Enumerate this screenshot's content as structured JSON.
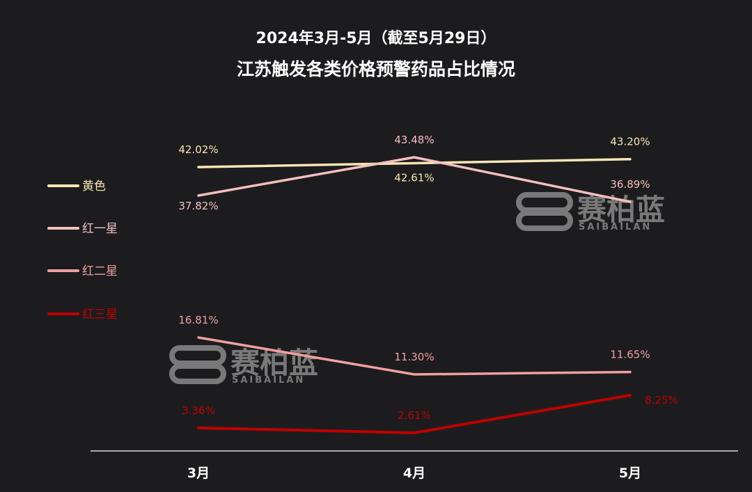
{
  "chart_data": {
    "type": "line",
    "title": "2024年3月-5月（截至5月29日）",
    "subtitle": "江苏触发各类价格预警药品占比情况",
    "categories": [
      "3月",
      "4月",
      "5月"
    ],
    "series": [
      {
        "name": "黄色",
        "color": "#f7e6b5",
        "values": [
          42.02,
          42.61,
          43.2
        ],
        "labels": [
          "42.02%",
          "42.61%",
          "43.20%"
        ]
      },
      {
        "name": "红一星",
        "color": "#f3c0c0",
        "values": [
          37.82,
          43.48,
          36.89
        ],
        "labels": [
          "37.82%",
          "43.48%",
          "36.89%"
        ]
      },
      {
        "name": "红二星",
        "color": "#f0a0a0",
        "values": [
          16.81,
          11.3,
          11.65
        ],
        "labels": [
          "16.81%",
          "11.30%",
          "11.65%"
        ]
      },
      {
        "name": "红三星",
        "color": "#c00000",
        "values": [
          3.36,
          2.61,
          8.25
        ],
        "labels": [
          "3.36%",
          "2.61%",
          "8.25%"
        ]
      }
    ],
    "xlabel": "",
    "ylabel": "",
    "grid": false,
    "legend": "left"
  },
  "watermark": {
    "text": "赛柏蓝",
    "sub": "SAIBAILAN",
    "color": "#8a8a8a"
  }
}
